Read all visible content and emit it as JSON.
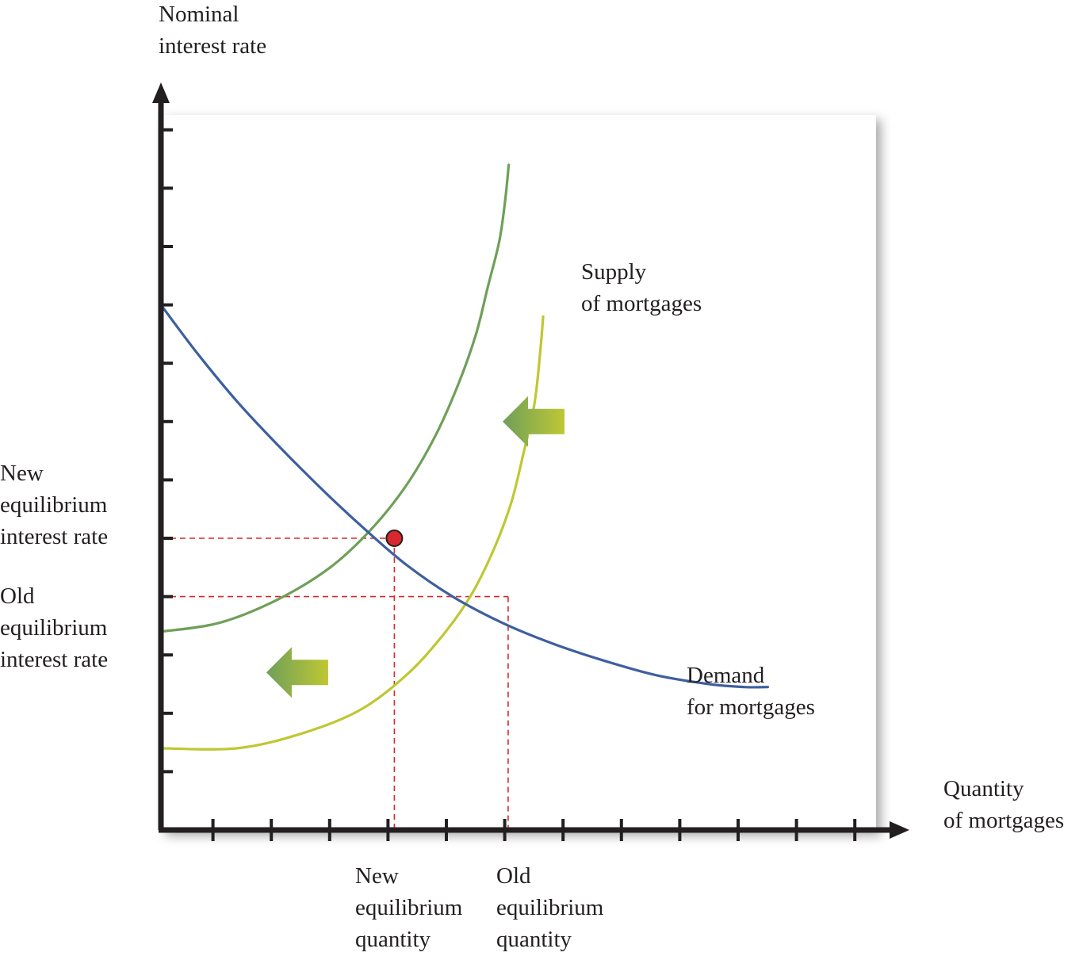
{
  "chart_data": {
    "type": "line",
    "title": "",
    "xlabel": "Quantity\nof mortgages",
    "ylabel": "Nominal\ninterest rate",
    "xlim": [
      0,
      12.5
    ],
    "ylim": [
      0,
      12.5
    ],
    "x_ticks": [
      1,
      2,
      3,
      4,
      5,
      6,
      7,
      8,
      9,
      10,
      11,
      12
    ],
    "y_ticks": [
      1,
      2,
      3,
      4,
      5,
      6,
      7,
      8,
      9,
      10,
      11,
      12
    ],
    "grid": false,
    "series": [
      {
        "name": "Supply\nof mortgages",
        "role": "old-supply",
        "color": "#bfc733",
        "x": [
          0,
          1.3,
          2.4,
          3.4,
          4.2,
          4.8,
          5.3,
          5.7,
          6.0,
          6.2,
          6.4,
          6.5,
          6.55
        ],
        "y": [
          1.4,
          1.4,
          1.65,
          2.05,
          2.65,
          3.3,
          4.0,
          4.8,
          5.6,
          6.4,
          7.3,
          8.2,
          8.8
        ]
      },
      {
        "name": "",
        "role": "new-supply",
        "color": "#6f9f5a",
        "x": [
          0,
          1.0,
          2.0,
          2.9,
          3.6,
          4.2,
          4.7,
          5.1,
          5.4,
          5.6,
          5.8,
          5.9,
          5.96
        ],
        "y": [
          3.4,
          3.55,
          3.95,
          4.5,
          5.15,
          5.9,
          6.75,
          7.65,
          8.5,
          9.3,
          10.1,
          10.8,
          11.4
        ]
      },
      {
        "name": "Demand\nfor mortgages",
        "role": "demand",
        "color": "#3e5f9f",
        "x": [
          0,
          0.6,
          1.3,
          2.0,
          2.8,
          3.5,
          4.2,
          5.0,
          5.85,
          6.7,
          7.6,
          8.5,
          9.4,
          10.0,
          10.4
        ],
        "y": [
          9.0,
          8.2,
          7.35,
          6.6,
          5.8,
          5.15,
          4.55,
          4.0,
          3.55,
          3.2,
          2.9,
          2.65,
          2.5,
          2.45,
          2.45
        ]
      }
    ],
    "equilibria": [
      {
        "label": "New\nequilibrium\ninterest rate",
        "value": 5
      },
      {
        "label": "Old\nequilibrium\ninterest rate",
        "value": 4
      }
    ],
    "quantities": [
      {
        "label": "New\nequilibrium\nquantity",
        "value": 4
      },
      {
        "label": "Old\nequilibrium\nquantity",
        "value": 5.95
      }
    ],
    "equilibrium_point": {
      "x": 4,
      "y": 5
    },
    "shift_arrows": [
      {
        "direction": "left",
        "x": 6.4,
        "y": 7
      },
      {
        "direction": "left",
        "x": 2.35,
        "y": 2.7
      }
    ],
    "colors": {
      "axis": "#231f20",
      "guide": "#d7282f",
      "point": "#d7282f",
      "arrow_from": "#bfc733",
      "arrow_to": "#6f9f5a"
    }
  }
}
